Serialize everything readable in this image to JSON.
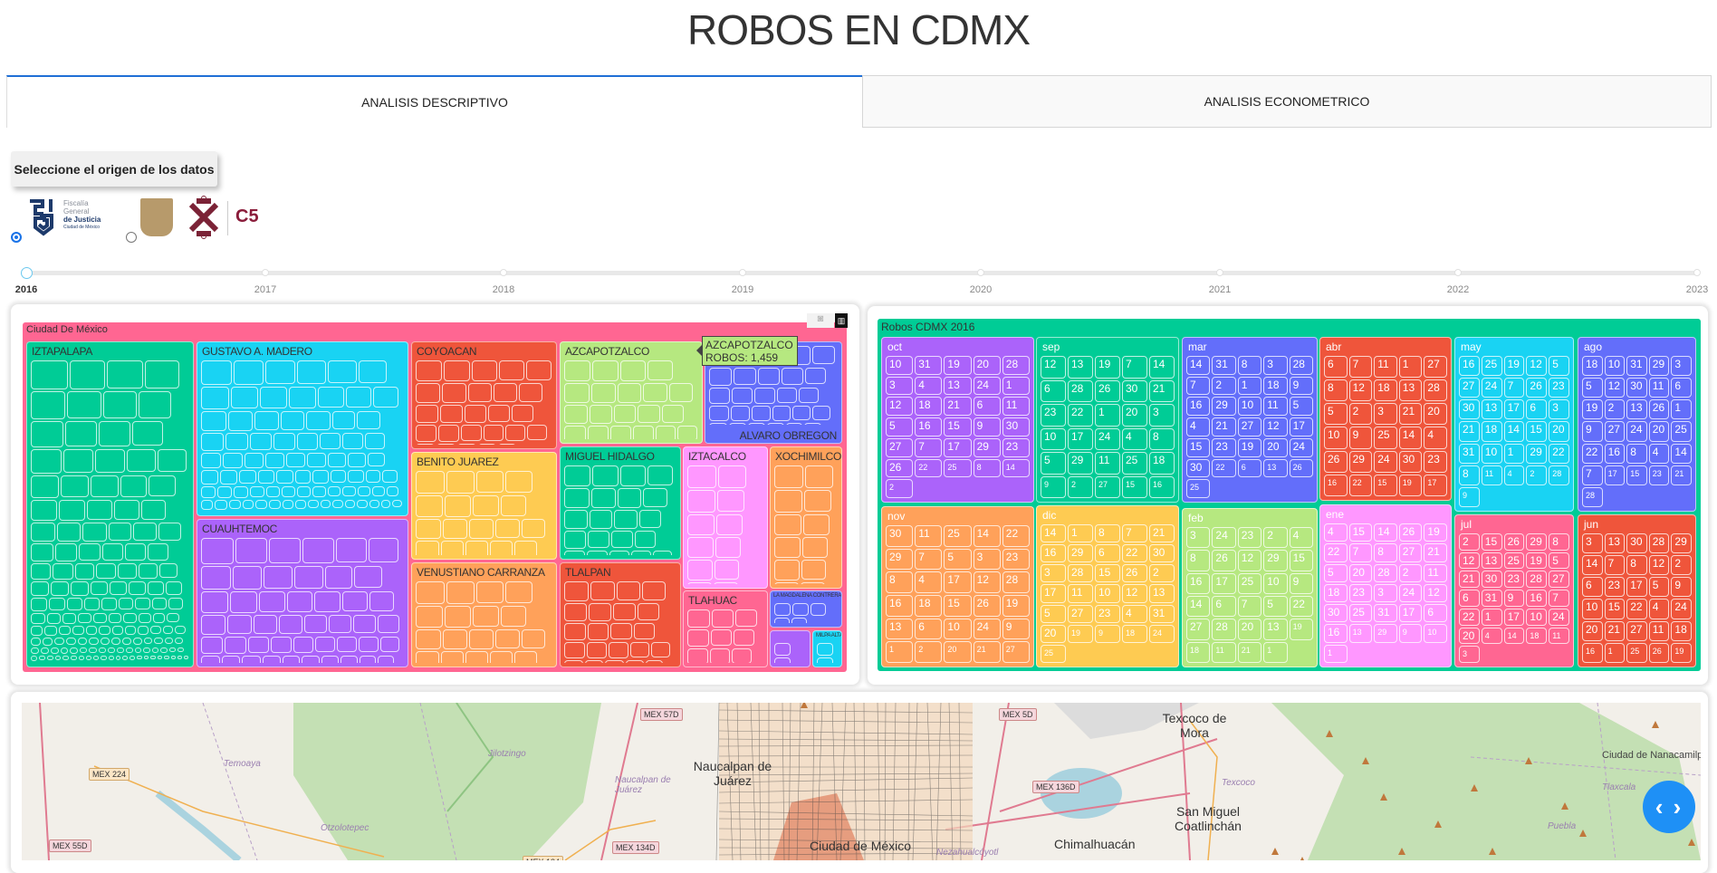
{
  "header": {
    "title": "ROBOS EN CDMX"
  },
  "tabs": [
    {
      "label": "ANALISIS DESCRIPTIVO",
      "active": true
    },
    {
      "label": "ANALISIS ECONOMETRICO",
      "active": false
    }
  ],
  "source": {
    "button_label": "Seleccione el origen de los datos",
    "options": [
      {
        "logo": "Fiscalía General de Justicia Ciudad de México",
        "logo_lines": [
          "Fiscalía",
          "General",
          "de Justicia",
          "Ciudad de México"
        ],
        "selected": true
      },
      {
        "logo": "Gobierno CDMX / C5",
        "logo_text": "C5",
        "selected": false
      }
    ]
  },
  "year_slider": {
    "years": [
      "2016",
      "2017",
      "2018",
      "2019",
      "2020",
      "2021",
      "2022",
      "2023"
    ],
    "selected": "2016"
  },
  "treemap_left": {
    "root": "Ciudad De México",
    "root_color": "#ff6692",
    "districts": [
      {
        "name": "IZTAPALAPA",
        "color": "#00cc96"
      },
      {
        "name": "GUSTAVO A. MADERO",
        "color": "#19d3f3"
      },
      {
        "name": "CUAUHTEMOC",
        "color": "#ab63fa"
      },
      {
        "name": "COYOACAN",
        "color": "#ef553b"
      },
      {
        "name": "BENITO JUAREZ",
        "color": "#fecb52"
      },
      {
        "name": "VENUSTIANO CARRANZA",
        "color": "#ffa15a"
      },
      {
        "name": "AZCAPOTZALCO",
        "color": "#b6e880"
      },
      {
        "name": "ALVARO OBREGON",
        "color": "#636efa"
      },
      {
        "name": "MIGUEL HIDALGO",
        "color": "#00cc96"
      },
      {
        "name": "IZTACALCO",
        "color": "#ff97ff"
      },
      {
        "name": "XOCHIMILCO",
        "color": "#ffa15a"
      },
      {
        "name": "TLALPAN",
        "color": "#ef553b"
      },
      {
        "name": "TLAHUAC",
        "color": "#ff6692"
      },
      {
        "name": "LA MAGDALENA CONTRERAS",
        "color": "#636efa"
      },
      {
        "name": "",
        "color": "#ab63fa"
      },
      {
        "name": "MILPA ALTA",
        "color": "#19d3f3"
      }
    ],
    "tooltip": {
      "name": "AZCAPOTZALCO",
      "value": "ROBOS: 1,459"
    },
    "modebar": [
      "camera-icon",
      "plotly-logo-icon"
    ]
  },
  "treemap_right": {
    "root": "Robos CDMX 2016",
    "root_color": "#00cc96",
    "months": [
      {
        "name": "oct",
        "color": "#ab63fa",
        "days": [
          10,
          31,
          19,
          20,
          28,
          3,
          4,
          13,
          24,
          1,
          12,
          18,
          21,
          6,
          11,
          5,
          16,
          15,
          9,
          30,
          27,
          7,
          17,
          29,
          23,
          26,
          22,
          25,
          8,
          14,
          2
        ]
      },
      {
        "name": "sep",
        "color": "#00cc96",
        "days": [
          12,
          13,
          19,
          7,
          14,
          6,
          28,
          26,
          30,
          21,
          23,
          22,
          1,
          20,
          3,
          10,
          17,
          24,
          4,
          8,
          5,
          29,
          11,
          25,
          18,
          9,
          2,
          27,
          15,
          16
        ]
      },
      {
        "name": "mar",
        "color": "#636efa",
        "days": [
          14,
          31,
          8,
          3,
          28,
          7,
          2,
          1,
          18,
          9,
          16,
          29,
          10,
          11,
          5,
          4,
          21,
          27,
          12,
          17,
          15,
          23,
          19,
          20,
          24,
          30,
          22,
          6,
          13,
          26,
          25
        ]
      },
      {
        "name": "abr",
        "color": "#ef553b",
        "days": [
          6,
          7,
          11,
          1,
          27,
          8,
          12,
          18,
          13,
          28,
          5,
          2,
          3,
          21,
          20,
          10,
          9,
          25,
          14,
          4,
          26,
          29,
          24,
          30,
          23,
          16,
          22,
          15,
          19,
          17
        ]
      },
      {
        "name": "may",
        "color": "#19d3f3",
        "days": [
          16,
          25,
          19,
          12,
          5,
          27,
          24,
          7,
          26,
          23,
          30,
          13,
          17,
          6,
          3,
          21,
          18,
          14,
          15,
          20,
          31,
          10,
          1,
          29,
          22,
          8,
          11,
          4,
          2,
          28,
          9
        ]
      },
      {
        "name": "ago",
        "color": "#636efa",
        "days": [
          18,
          10,
          31,
          29,
          3,
          5,
          12,
          30,
          11,
          6,
          19,
          2,
          13,
          26,
          1,
          9,
          27,
          24,
          20,
          25,
          22,
          16,
          8,
          4,
          14,
          7,
          17,
          15,
          23,
          21,
          28
        ]
      },
      {
        "name": "nov",
        "color": "#ffa15a",
        "days": [
          30,
          11,
          25,
          14,
          22,
          29,
          7,
          5,
          3,
          23,
          8,
          4,
          17,
          12,
          28,
          16,
          18,
          15,
          26,
          19,
          13,
          6,
          10,
          24,
          9,
          1,
          2,
          20,
          21,
          27
        ]
      },
      {
        "name": "dic",
        "color": "#fecb52",
        "days": [
          14,
          1,
          8,
          7,
          21,
          16,
          29,
          6,
          22,
          30,
          3,
          28,
          15,
          26,
          2,
          17,
          11,
          10,
          12,
          13,
          5,
          27,
          23,
          4,
          31,
          20,
          19,
          9,
          18,
          24,
          25
        ]
      },
      {
        "name": "feb",
        "color": "#b6e880",
        "days": [
          3,
          24,
          23,
          2,
          4,
          8,
          26,
          12,
          29,
          15,
          16,
          17,
          25,
          10,
          9,
          14,
          6,
          7,
          5,
          22,
          27,
          28,
          20,
          13,
          19,
          18,
          11,
          21,
          1
        ]
      },
      {
        "name": "ene",
        "color": "#ff97ff",
        "days": [
          4,
          15,
          14,
          26,
          19,
          22,
          7,
          8,
          27,
          21,
          5,
          20,
          28,
          2,
          11,
          18,
          23,
          3,
          24,
          12,
          30,
          25,
          31,
          17,
          6,
          16,
          13,
          29,
          9,
          10,
          1
        ]
      },
      {
        "name": "jul",
        "color": "#ff6692",
        "days": [
          2,
          15,
          26,
          29,
          8,
          12,
          13,
          25,
          19,
          5,
          21,
          30,
          23,
          28,
          27,
          6,
          31,
          9,
          16,
          7,
          22,
          1,
          17,
          10,
          24,
          20,
          4,
          14,
          18,
          11,
          3
        ]
      },
      {
        "name": "jun",
        "color": "#ef553b",
        "days": [
          3,
          13,
          30,
          28,
          29,
          14,
          7,
          8,
          12,
          2,
          6,
          23,
          17,
          5,
          9,
          10,
          15,
          22,
          4,
          24,
          20,
          21,
          27,
          11,
          18,
          16,
          1,
          25,
          26,
          19
        ]
      }
    ]
  },
  "map": {
    "roads": [
      "MEX 57D",
      "MEX 5D",
      "MEX 224",
      "MEX 55D",
      "MEX 134D",
      "MEX 134",
      "MEX 136D"
    ],
    "places": [
      "Temoaya",
      "Jilotzingo",
      "Naucalpan de Juárez",
      "Naucalpan de Juárez",
      "Otzolotepec",
      "Texcoco de Mora",
      "Texcoco",
      "San Miguel Coatlinchán",
      "Chimalhuacán",
      "Ciudad de Nanacamilpa",
      "Tlaxcala",
      "Puebla",
      "Nezahualcóyotl",
      "Ciudad de México"
    ],
    "nav_button": "‹ ›"
  }
}
